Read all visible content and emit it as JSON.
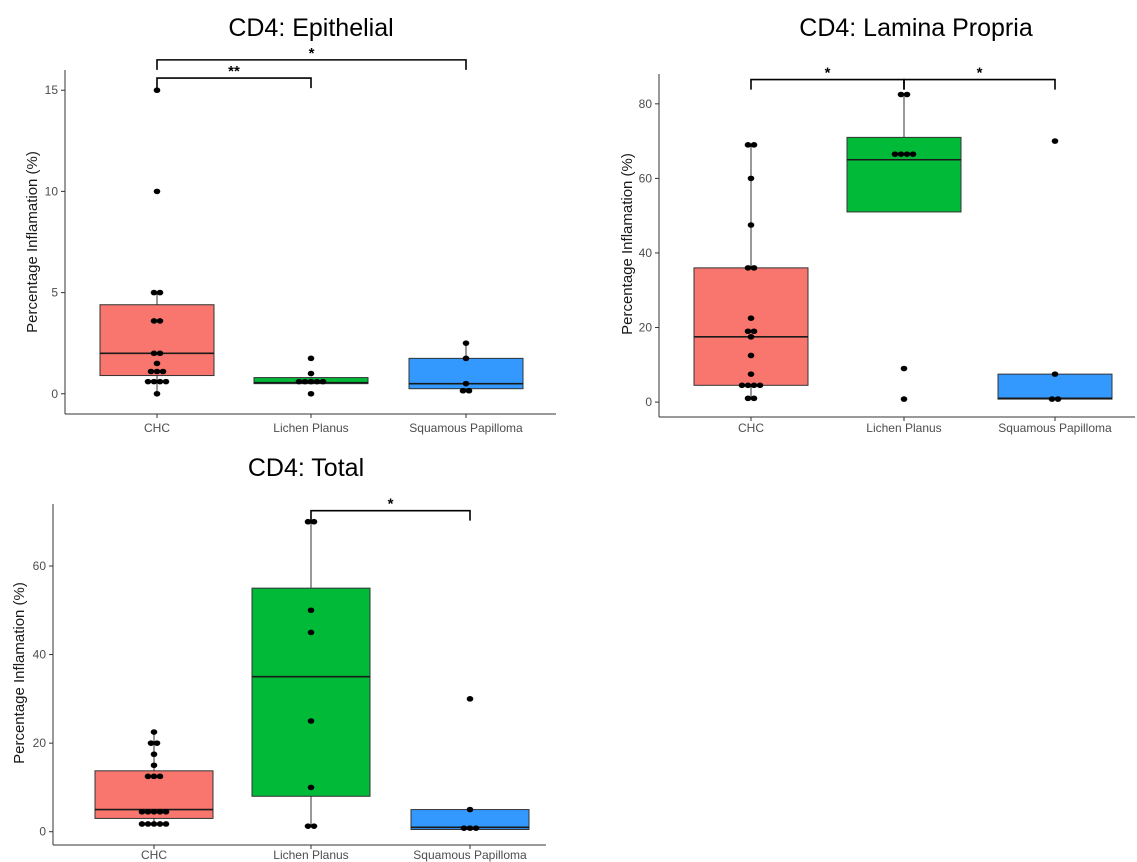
{
  "chart_data": [
    {
      "type": "box",
      "title": "CD4: Epithelial",
      "ylabel": "Percentage Inflamation (%)",
      "ylim": [
        -1,
        16
      ],
      "yticks": [
        0,
        5,
        10,
        15
      ],
      "categories": [
        "CHC",
        "Lichen Planus",
        "Squamous Papilloma"
      ],
      "colors": [
        "#F8766D",
        "#00BA38",
        "#3399FF"
      ],
      "boxes": [
        {
          "q1": 0.9,
          "median": 2.0,
          "q3": 4.4,
          "low": 0.0,
          "high": 5.0
        },
        {
          "q1": 0.5,
          "median": 0.55,
          "q3": 0.8,
          "low": 0.5,
          "high": 0.8
        },
        {
          "q1": 0.25,
          "median": 0.5,
          "q3": 1.75,
          "low": 0.1,
          "high": 2.5
        }
      ],
      "points": [
        [
          0,
          0.6,
          0.6,
          0.6,
          0.6,
          1.1,
          1.1,
          1.1,
          1.5,
          2.0,
          2.0,
          3.6,
          3.6,
          5.0,
          5.0,
          10.0,
          15.0
        ],
        [
          0,
          0.6,
          0.6,
          0.6,
          0.6,
          0.6,
          1.0,
          1.75
        ],
        [
          0.15,
          0.15,
          0.5,
          1.75,
          2.5
        ]
      ],
      "significance": [
        {
          "from": 0,
          "to": 1,
          "label": "**",
          "y": 15.6
        },
        {
          "from": 0,
          "to": 2,
          "label": "*",
          "y": 16.5
        }
      ]
    },
    {
      "type": "box",
      "title": "CD4: Lamina Propria",
      "ylabel": "Percentage Inflamation (%)",
      "ylim": [
        -4,
        88
      ],
      "yticks": [
        0,
        20,
        40,
        60,
        80
      ],
      "categories": [
        "CHC",
        "Lichen Planus",
        "Squamous Papilloma"
      ],
      "colors": [
        "#F8766D",
        "#00BA38",
        "#3399FF"
      ],
      "boxes": [
        {
          "q1": 4.5,
          "median": 17.5,
          "q3": 36.0,
          "low": 1.0,
          "high": 69.0
        },
        {
          "q1": 51.0,
          "median": 65.0,
          "q3": 71.0,
          "low": 51.0,
          "high": 82.0
        },
        {
          "q1": 0.8,
          "median": 1.0,
          "q3": 7.5,
          "low": 0.8,
          "high": 7.5
        }
      ],
      "points": [
        [
          1.0,
          1.0,
          4.5,
          4.5,
          4.5,
          4.5,
          7.5,
          12.5,
          17.5,
          19.0,
          19.0,
          22.5,
          36.0,
          36.0,
          47.5,
          60.0,
          69.0,
          69.0
        ],
        [
          0.8,
          9.0,
          66.5,
          66.5,
          66.5,
          66.5,
          82.5,
          82.5
        ],
        [
          0.8,
          0.8,
          7.5,
          70.0
        ]
      ],
      "significance": [
        {
          "from": 0,
          "to": 1,
          "label": "*",
          "y": 86.5
        },
        {
          "from": 1,
          "to": 2,
          "label": "*",
          "y": 86.5
        }
      ]
    },
    {
      "type": "box",
      "title": "CD4: Total",
      "ylabel": "Percentage Inflamation (%)",
      "ylim": [
        -3,
        74
      ],
      "yticks": [
        0,
        20,
        40,
        60
      ],
      "categories": [
        "CHC",
        "Lichen Planus",
        "Squamous Papilloma"
      ],
      "colors": [
        "#F8766D",
        "#00BA38",
        "#3399FF"
      ],
      "boxes": [
        {
          "q1": 3.0,
          "median": 5.0,
          "q3": 13.75,
          "low": 1.75,
          "high": 22.5
        },
        {
          "q1": 8.0,
          "median": 35.0,
          "q3": 55.0,
          "low": 1.25,
          "high": 70.0
        },
        {
          "q1": 0.5,
          "median": 1.0,
          "q3": 5.0,
          "low": 0.5,
          "high": 5.0
        }
      ],
      "points": [
        [
          1.75,
          1.75,
          1.75,
          1.75,
          1.75,
          4.5,
          4.5,
          4.5,
          4.5,
          4.5,
          12.5,
          12.5,
          12.5,
          15.0,
          17.5,
          20.0,
          20.0,
          22.5
        ],
        [
          1.25,
          1.25,
          10.0,
          25.0,
          45.0,
          50.0,
          70.0,
          70.0
        ],
        [
          0.8,
          0.8,
          0.8,
          5.0,
          30.0
        ]
      ],
      "significance": [
        {
          "from": 1,
          "to": 2,
          "label": "*",
          "y": 72.5
        }
      ]
    }
  ]
}
